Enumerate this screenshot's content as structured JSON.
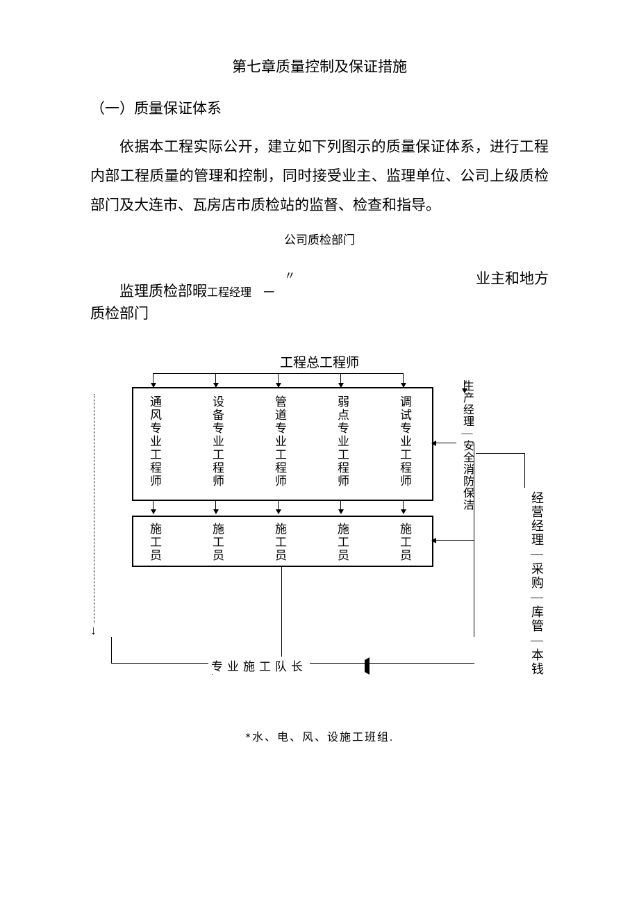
{
  "chapter_title": "第七章质量控制及保证措施",
  "section_heading": "（一）质量保证体系",
  "paragraph": "依据本工程实际公开，建立如下列图示的质量保证体系，进行工程内部工程质量的管理和控制，同时接受业主、监理单位、公司上级质检部门及大连市、瓦房店市质检站的监督、检查和指导。",
  "top_label": "公司质检部门",
  "mid_left": "监理质检部暇",
  "mid_pm": "工程经理",
  "mid_quote": "〃一",
  "mid_right": "业主和地方",
  "mid_below": "质检部门",
  "flow": {
    "title": "工程总工程师",
    "engineers": [
      "通风专业工程师",
      "设备专业工程师",
      "管道专业工程师",
      "弱点专业工程师",
      "调试专业工程师"
    ],
    "workers": [
      "施工员",
      "施工员",
      "施工员",
      "施工员",
      "施工员"
    ],
    "right1": "生产经理—安全消防保洁",
    "right2": "经营经理—采购—库管—本钱",
    "bottom": "专业施工队长",
    "left_arrow": "↓"
  },
  "footer": "*水、电、风、设施工班组.",
  "colors": {
    "text": "#000000",
    "bg": "#ffffff",
    "line": "#000000"
  }
}
